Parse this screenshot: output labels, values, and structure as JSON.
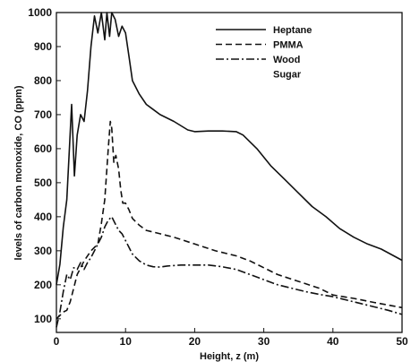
{
  "chart_data": {
    "type": "line",
    "title": "",
    "xlabel": "Height, z (m)",
    "ylabel": "levels of carbon monoxide, CO (ppm)",
    "xlim": [
      0,
      50
    ],
    "ylim": [
      60,
      1000
    ],
    "xticks": [
      0,
      10,
      20,
      30,
      40,
      50
    ],
    "yticks": [
      100,
      200,
      300,
      400,
      500,
      600,
      700,
      800,
      900,
      1000
    ],
    "grid": false,
    "legend_position": "top-right",
    "series": [
      {
        "name": "Heptane",
        "style": "solid",
        "x": [
          0,
          0.5,
          1.0,
          1.5,
          1.9,
          2.2,
          2.6,
          3.0,
          3.5,
          4.0,
          4.5,
          5.0,
          5.5,
          6.0,
          6.5,
          7.0,
          7.3,
          7.7,
          8.0,
          8.5,
          9.0,
          9.5,
          10.0,
          10.5,
          11.0,
          12.0,
          13.0,
          14.0,
          15.0,
          17.0,
          19.0,
          20.0,
          22.0,
          24.0,
          26.0,
          27.0,
          29.0,
          31.0,
          33.0,
          35.0,
          37.0,
          39.0,
          41.0,
          43.0,
          45.0,
          47.0,
          50.0
        ],
        "values": [
          200,
          260,
          370,
          450,
          610,
          730,
          520,
          640,
          700,
          680,
          770,
          900,
          990,
          940,
          1000,
          920,
          1000,
          930,
          1000,
          980,
          930,
          960,
          940,
          870,
          800,
          760,
          730,
          715,
          700,
          680,
          655,
          650,
          652,
          652,
          650,
          640,
          600,
          550,
          510,
          470,
          430,
          400,
          365,
          340,
          320,
          305,
          272
        ]
      },
      {
        "name": "PMMA",
        "style": "dashed",
        "x": [
          0,
          0.5,
          1.0,
          1.5,
          2.0,
          2.5,
          3.0,
          4.0,
          5.0,
          6.0,
          6.5,
          7.0,
          7.5,
          7.8,
          8.0,
          8.3,
          8.6,
          9.0,
          9.3,
          9.6,
          10.0,
          10.5,
          11.0,
          12.0,
          13.0,
          15.0,
          17.0,
          20.0,
          23.0,
          26.0,
          28.0,
          30.0,
          32.0,
          35.0,
          38.0,
          40.0,
          43.0,
          46.0,
          50.0
        ],
        "values": [
          100,
          110,
          120,
          125,
          150,
          190,
          230,
          270,
          300,
          320,
          380,
          450,
          600,
          680,
          660,
          560,
          580,
          540,
          480,
          440,
          440,
          420,
          395,
          375,
          360,
          350,
          340,
          320,
          300,
          285,
          270,
          250,
          230,
          210,
          190,
          170,
          160,
          148,
          133
        ]
      },
      {
        "name": "Wood",
        "style": "dashdot",
        "x": [
          0,
          0.5,
          1.0,
          1.5,
          2.0,
          2.5,
          3.0,
          3.5,
          4.0,
          4.5,
          5.0,
          5.5,
          6.0,
          6.5,
          7.0,
          7.5,
          8.0,
          8.5,
          9.0,
          9.5,
          10.0,
          10.5,
          11.0,
          12.0,
          13.0,
          14.0,
          15.0,
          16.0,
          18.0,
          20.0,
          22.0,
          24.0,
          26.0,
          28.0,
          30.0,
          32.0,
          34.0,
          36.0,
          38.0,
          40.0,
          42.0,
          44.0,
          46.0,
          48.0,
          50.0
        ],
        "values": [
          75,
          120,
          180,
          230,
          215,
          250,
          245,
          265,
          245,
          265,
          280,
          300,
          320,
          340,
          370,
          390,
          400,
          380,
          360,
          350,
          330,
          310,
          290,
          270,
          258,
          253,
          252,
          255,
          258,
          258,
          258,
          253,
          245,
          230,
          215,
          200,
          190,
          180,
          172,
          165,
          155,
          145,
          135,
          125,
          113
        ]
      },
      {
        "name": "Sugar",
        "style": "none",
        "x": [],
        "values": []
      }
    ]
  }
}
